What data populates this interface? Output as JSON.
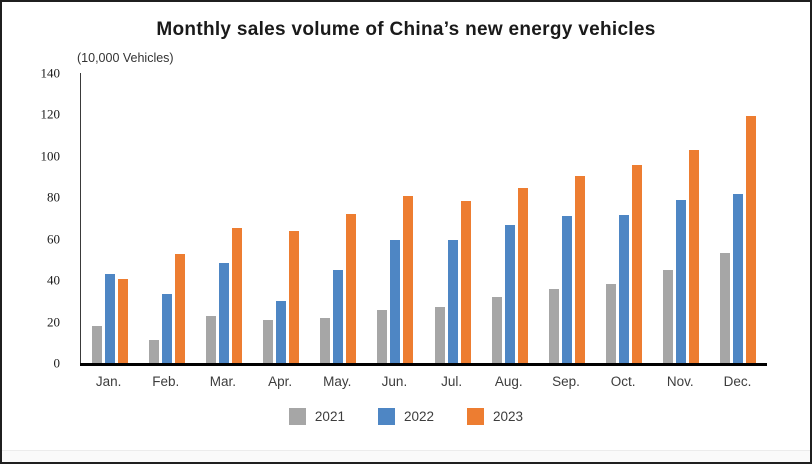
{
  "chart_data": {
    "type": "bar",
    "title": "Monthly sales volume of China’s new energy vehicles",
    "unit": "(10,000 Vehicles)",
    "categories": [
      "Jan.",
      "Feb.",
      "Mar.",
      "Apr.",
      "May.",
      "Jun.",
      "Jul.",
      "Aug.",
      "Sep.",
      "Oct.",
      "Nov.",
      "Dec."
    ],
    "series": [
      {
        "name": "2021",
        "color": "#a6a6a6",
        "values": [
          17.9,
          11.0,
          22.6,
          20.6,
          21.7,
          25.6,
          27.1,
          32.1,
          35.7,
          38.3,
          45.0,
          53.1
        ]
      },
      {
        "name": "2022",
        "color": "#4e86c4",
        "values": [
          43.1,
          33.4,
          48.4,
          29.9,
          44.7,
          59.6,
          59.3,
          66.6,
          70.8,
          71.4,
          78.6,
          81.4
        ]
      },
      {
        "name": "2023",
        "color": "#ed7d31",
        "values": [
          40.8,
          52.5,
          65.3,
          63.6,
          71.7,
          80.6,
          78.0,
          84.6,
          90.4,
          95.6,
          102.6,
          119.1
        ]
      }
    ],
    "ylim": [
      0,
      140
    ],
    "yticks": [
      0,
      20,
      40,
      60,
      80,
      100,
      120,
      140
    ],
    "grid": false,
    "legend_position": "bottom",
    "axis_color": "#000000",
    "text_color": "#3d3d3d"
  }
}
